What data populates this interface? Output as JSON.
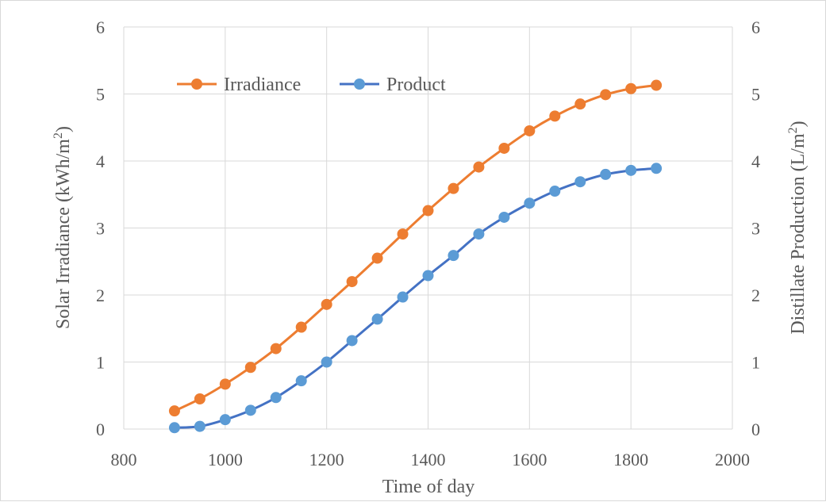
{
  "chart_data": {
    "type": "line",
    "title": "",
    "xlabel": "Time of day",
    "ylabel_left": "Solar Irradiance (kWh/m²)",
    "ylabel_left_base": "Solar Irradiance (kWh/m",
    "ylabel_left_sup": "2",
    "ylabel_left_close": ")",
    "ylabel_right": "Distillate Production (L/m²)",
    "ylabel_right_base": "Distillate Production (L/m",
    "ylabel_right_sup": "2",
    "ylabel_right_close": ")",
    "xlim": [
      800,
      2000
    ],
    "xticks": [
      "800",
      "1000",
      "1200",
      "1400",
      "1600",
      "1800",
      "2000"
    ],
    "ylim_left": [
      0,
      6
    ],
    "ylim_right": [
      0,
      6
    ],
    "yticks_left": [
      "0",
      "1",
      "2",
      "3",
      "4",
      "5",
      "6"
    ],
    "yticks_right": [
      "0",
      "1",
      "2",
      "3",
      "4",
      "5",
      "6"
    ],
    "grid": true,
    "legend_position": "top-left inside",
    "x": [
      900,
      950,
      1000,
      1050,
      1100,
      1150,
      1200,
      1250,
      1300,
      1350,
      1400,
      1450,
      1500,
      1550,
      1600,
      1650,
      1700,
      1750,
      1800,
      1850
    ],
    "series": [
      {
        "name": "Irradiance",
        "axis": "left",
        "color": "#ed7d31",
        "values": [
          0.27,
          0.45,
          0.67,
          0.92,
          1.2,
          1.52,
          1.86,
          2.2,
          2.55,
          2.91,
          3.26,
          3.59,
          3.91,
          4.19,
          4.45,
          4.67,
          4.85,
          4.99,
          5.08,
          5.13
        ]
      },
      {
        "name": "Product",
        "axis": "right",
        "color": "#5b9bd5",
        "line_color": "#4472c4",
        "values": [
          0.02,
          0.04,
          0.14,
          0.28,
          0.47,
          0.72,
          1.0,
          1.32,
          1.64,
          1.97,
          2.29,
          2.59,
          2.91,
          3.16,
          3.37,
          3.55,
          3.69,
          3.8,
          3.86,
          3.89
        ]
      }
    ]
  }
}
